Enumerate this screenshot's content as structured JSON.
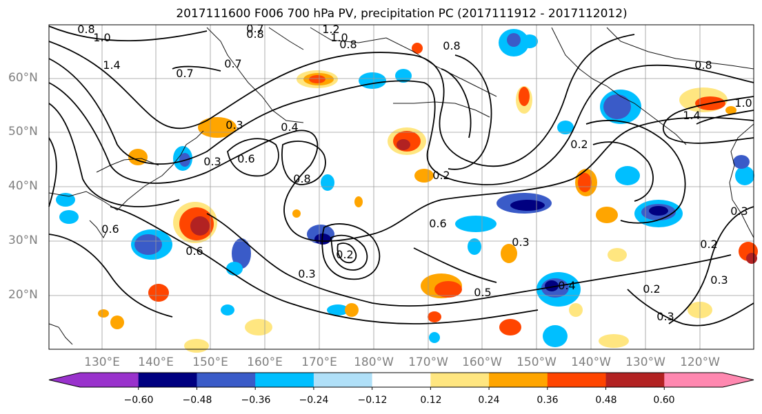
{
  "title": "2017111600 F006 700 hPa PV, precipitation PC (2017111912 - 2017112012)",
  "latitude_labels": [
    "60°N",
    "50°N",
    "40°N",
    "30°N",
    "20°N"
  ],
  "longitude_labels": [
    "130°E",
    "140°E",
    "150°E",
    "160°E",
    "170°E",
    "180°W",
    "170°W",
    "160°W",
    "150°W",
    "140°W",
    "130°W",
    "120°W"
  ],
  "colorbar": {
    "tick_labels": [
      "−0.60",
      "−0.48",
      "−0.36",
      "−0.24",
      "−0.12",
      "0.12",
      "0.24",
      "0.36",
      "0.48",
      "0.60"
    ],
    "colors": [
      "#9932CC",
      "#000080",
      "#3A5BC8",
      "#00BFFF",
      "#B0E0F8",
      "#FFFFFF",
      "#FFE680",
      "#FFA500",
      "#FF4500",
      "#B22222",
      "#FF88B0"
    ]
  },
  "contour_labels": [
    "0.8",
    "1.0",
    "0.7",
    "0.8",
    "1.2",
    "1.0",
    "0.8",
    "0.8",
    "0.7",
    "1.4",
    "0.7",
    "0.3",
    "0.3",
    "0.4",
    "0.6",
    "0.6",
    "0.2",
    "0.8",
    "0.6",
    "0.2",
    "0.3",
    "0.6",
    "0.3",
    "0.5",
    "0.4",
    "0.2",
    "0.8",
    "1.0",
    "1.4",
    "0.3",
    "0.2",
    "0.3",
    "0.2",
    "0.3"
  ],
  "map": {
    "projection": "equirectangular",
    "lon_range": "117°E – 113°W",
    "lat_range": "10°N – 70°N",
    "gridlines": true,
    "coastlines": true,
    "contour_color": "#000000"
  }
}
